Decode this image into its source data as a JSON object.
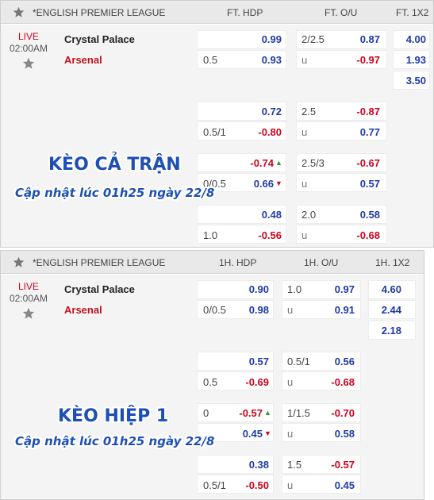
{
  "icons": {
    "header_star": "star-icon",
    "favorite": "star-icon",
    "up": "arrow-up-icon",
    "down": "arrow-down-icon"
  },
  "full": {
    "league": "*ENGLISH PREMIER LEAGUE",
    "col_hdp": "FT. HDP",
    "col_ou": "FT. O/U",
    "col_1x2": "FT. 1X2",
    "status": "LIVE",
    "time": "02:00AM",
    "home": "Crystal Palace",
    "away": "Arsenal",
    "r1": {
      "hdp_line": "",
      "hdp_home": "0.99",
      "ou_line": "2/2.5",
      "ou_over": "0.87",
      "x1": "4.00"
    },
    "r2": {
      "hdp_line": "0.5",
      "hdp_away": "0.93",
      "ou_u": "u",
      "ou_under": "-0.97",
      "x2": "1.93"
    },
    "r3": {
      "x3": "3.50"
    },
    "b2a": {
      "hdp_home": "0.72",
      "ou_line": "2.5",
      "ou_over": "-0.87"
    },
    "b2b": {
      "hdp_line": "0.5/1",
      "hdp_away": "-0.80",
      "ou_u": "u",
      "ou_under": "0.77"
    },
    "b3a": {
      "hdp_home": "-0.74",
      "ou_line": "2.5/3",
      "ou_over": "-0.67"
    },
    "b3b": {
      "hdp_line": "0/0.5",
      "hdp_away": "0.66",
      "ou_u": "u",
      "ou_under": "0.57"
    },
    "b4a": {
      "hdp_home": "0.48",
      "ou_line": "2.0",
      "ou_over": "0.58"
    },
    "b4b": {
      "hdp_line": "1.0",
      "hdp_away": "-0.56",
      "ou_u": "u",
      "ou_under": "-0.68"
    },
    "overlay_title": "KÈO CẢ TRẬN",
    "overlay_sub": "Cập nhật lúc 01h25 ngày 22/8"
  },
  "half": {
    "league": "*ENGLISH PREMIER LEAGUE",
    "col_hdp": "1H. HDP",
    "col_ou": "1H. O/U",
    "col_1x2": "1H. 1X2",
    "status": "LIVE",
    "time": "02:00AM",
    "home": "Crystal Palace",
    "away": "Arsenal",
    "r1": {
      "hdp_line": "",
      "hdp_home": "0.90",
      "ou_line": "1.0",
      "ou_over": "0.97",
      "x1": "4.60"
    },
    "r2": {
      "hdp_line": "0/0.5",
      "hdp_away": "0.98",
      "ou_u": "u",
      "ou_under": "0.91",
      "x2": "2.44"
    },
    "r3": {
      "x3": "2.18"
    },
    "b2a": {
      "hdp_home": "0.57",
      "ou_line": "0.5/1",
      "ou_over": "0.56"
    },
    "b2b": {
      "hdp_line": "0.5",
      "hdp_away": "-0.69",
      "ou_u": "u",
      "ou_under": "-0.68"
    },
    "b3a": {
      "hdp_line": "0",
      "hdp_home": "-0.57",
      "ou_line": "1/1.5",
      "ou_over": "-0.70"
    },
    "b3b": {
      "hdp_away": "0.45",
      "ou_u": "u",
      "ou_under": "0.58"
    },
    "b4a": {
      "hdp_home": "0.38",
      "ou_line": "1.5",
      "ou_over": "-0.57"
    },
    "b4b": {
      "hdp_line": "0.5/1",
      "hdp_away": "-0.50",
      "ou_u": "u",
      "ou_under": "0.45"
    },
    "overlay_title": "KÈO HIỆP 1",
    "overlay_sub": "Cập nhật lúc 01h25 ngày 22/8"
  }
}
